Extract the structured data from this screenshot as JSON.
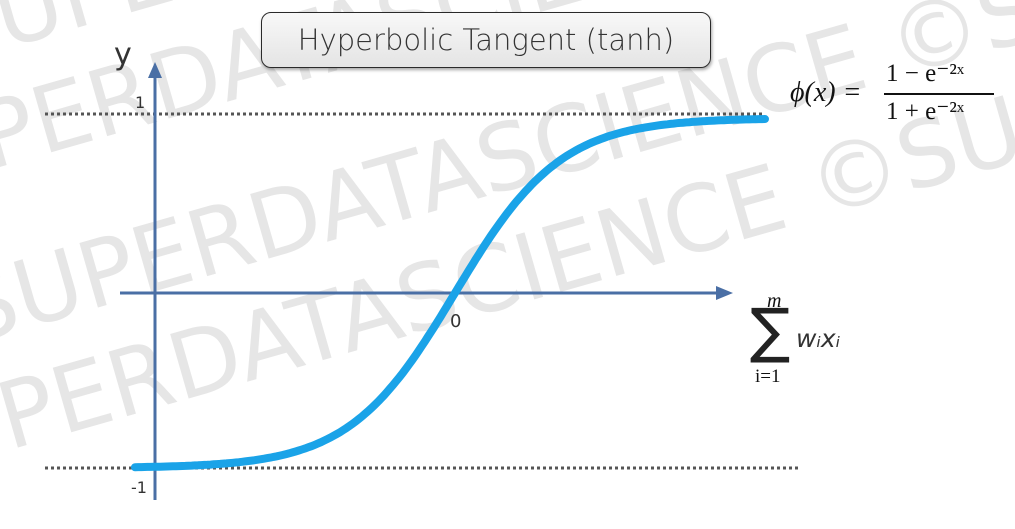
{
  "title": "Hyperbolic Tangent (tanh)",
  "watermark": "©SUPERDATASCIENCE",
  "axes": {
    "y_label": "y",
    "y_top_tick": "1",
    "y_bottom_tick": "-1",
    "origin_label": "0",
    "x_label": {
      "sum_upper": "m",
      "sum_symbol": "∑",
      "sum_lower": "i=1",
      "term": "wᵢxᵢ"
    }
  },
  "formula": {
    "lhs": "ϕ(x) =",
    "numerator": "1 − e⁻²ˣ",
    "denominator": "1 + e⁻²ˣ"
  },
  "colors": {
    "curve": "#1aa3e8",
    "axis": "#4a6fa5",
    "asymptote": "#555555",
    "watermark": "#e6e6e6"
  },
  "chart_data": {
    "type": "line",
    "function": "tanh",
    "xlim": [
      -3,
      3
    ],
    "ylim": [
      -1,
      1
    ],
    "asymptotes": [
      1,
      -1
    ]
  }
}
